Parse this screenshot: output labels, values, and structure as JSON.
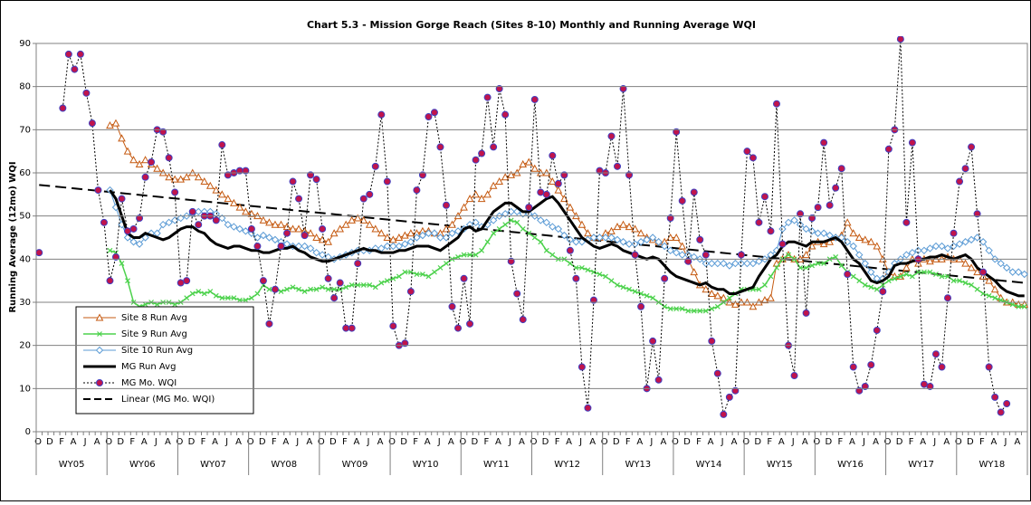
{
  "chart_data": {
    "type": "line",
    "title": "Chart 5.3 - Mission Gorge Reach (Sites 8-10) Monthly and Running Average WQI",
    "y_label": "Running Average (12mo) WQI",
    "ylim": [
      0,
      90
    ],
    "yticks": [
      0,
      10,
      20,
      30,
      40,
      50,
      60,
      70,
      80,
      90
    ],
    "grid": true,
    "legend": "lower left",
    "categories": [
      "O",
      null,
      "D",
      null,
      "F",
      null,
      "A",
      null,
      "J",
      null,
      "A",
      null,
      "O",
      null,
      "D",
      null,
      "F",
      null,
      "A",
      null,
      "J",
      null,
      "A",
      null,
      "O",
      null,
      "D",
      null,
      "F",
      null,
      "A",
      null,
      "J",
      null,
      "A",
      null,
      "O",
      null,
      "D",
      null,
      "F",
      null,
      "A",
      null,
      "J",
      null,
      "A",
      null,
      "O",
      null,
      "D",
      null,
      "F",
      null,
      "A",
      null,
      "J",
      null,
      "A",
      null,
      "O",
      null,
      "D",
      null,
      "F",
      null,
      "A",
      null,
      "J",
      null,
      "A",
      null,
      "O",
      null,
      "D",
      null,
      "F",
      null,
      "A",
      null,
      "J",
      null,
      "A",
      null,
      "O",
      null,
      "D",
      null,
      "F",
      null,
      "A",
      null,
      "J",
      null,
      "A",
      null,
      "O",
      null,
      "D",
      null,
      "F",
      null,
      "A",
      null,
      "J",
      null,
      "A",
      null,
      "O",
      null,
      "D",
      null,
      "F",
      null,
      "A",
      null,
      "J",
      null,
      "A",
      null,
      "O",
      null,
      "D",
      null,
      "F",
      null,
      "A",
      null,
      "J",
      null,
      "A",
      null,
      "O",
      null,
      "D",
      null,
      "F",
      null,
      "A",
      null,
      "J",
      null,
      "A",
      null,
      "O",
      null,
      "D",
      null,
      "F",
      null,
      "A",
      null,
      "J",
      null,
      "A",
      null,
      "O",
      null,
      "D",
      null,
      "F",
      null,
      "A",
      null,
      "J",
      null,
      "A",
      null
    ],
    "groups": [
      "WY05",
      "WY06",
      "WY07",
      "WY08",
      "WY09",
      "WY10",
      "WY11",
      "WY12",
      "WY13",
      "WY14",
      "WY15",
      "WY16",
      "WY17",
      "WY18"
    ],
    "series": [
      {
        "name": "Site 8 Run Avg",
        "color": "#c55a11",
        "marker": "triangle",
        "line_width": 1,
        "dash": "solid",
        "values": [
          null,
          null,
          null,
          null,
          null,
          null,
          null,
          null,
          null,
          null,
          null,
          null,
          71,
          71.5,
          68,
          65,
          63,
          62,
          63,
          62,
          61,
          60,
          59,
          58.5,
          58.5,
          59,
          60,
          59,
          58,
          57,
          56,
          55,
          54,
          53,
          52,
          51,
          50.5,
          50,
          49,
          48.5,
          48,
          48,
          47.5,
          47,
          47,
          46.5,
          46,
          45,
          44.5,
          44,
          46,
          47,
          48,
          49,
          49.5,
          49,
          48,
          47,
          46,
          45,
          44.5,
          45,
          45.5,
          46,
          46,
          46.5,
          46.5,
          46,
          46,
          47,
          48,
          50,
          52,
          54,
          55,
          54,
          55,
          57,
          58,
          59,
          59.5,
          60,
          62,
          62.5,
          61,
          60,
          60,
          58,
          56,
          54,
          52,
          50,
          48,
          46,
          45,
          45,
          46,
          46.5,
          47.5,
          48,
          47.5,
          47,
          46,
          45,
          44.5,
          44,
          44,
          45,
          45,
          43,
          40,
          37,
          34,
          33,
          32,
          31.5,
          31,
          30,
          29.5,
          30,
          30,
          29,
          30,
          30.5,
          31,
          39,
          40,
          41,
          40,
          40,
          41,
          43,
          44,
          43.5,
          44,
          45,
          45.5,
          48.5,
          46,
          45,
          44.5,
          44,
          43,
          40,
          37,
          36,
          36,
          38,
          40,
          39,
          40,
          39.5,
          40,
          40,
          40.5,
          40,
          40,
          39,
          38,
          37,
          36,
          35,
          33,
          31,
          30,
          30,
          29.5,
          29.5
        ]
      },
      {
        "name": "Site 9 Run Avg",
        "color": "#4dd24d",
        "marker": "x",
        "line_width": 1.5,
        "dash": "solid",
        "values": [
          null,
          null,
          null,
          null,
          null,
          null,
          null,
          null,
          null,
          null,
          null,
          null,
          42,
          41.5,
          39,
          35,
          30,
          29,
          29.5,
          30,
          29.5,
          30,
          30,
          29.5,
          30,
          31,
          32,
          32.5,
          32,
          32.5,
          31.5,
          31,
          31,
          31,
          30.5,
          30.5,
          31,
          32,
          34,
          33,
          33,
          32.5,
          33,
          33.5,
          33,
          32.5,
          33,
          33,
          33.5,
          33,
          33,
          33,
          33.5,
          34,
          34,
          34,
          34,
          33.5,
          34.5,
          35,
          35.5,
          36,
          37,
          37,
          36.5,
          36.5,
          36,
          37,
          38,
          39,
          40,
          40.5,
          41,
          41,
          41,
          42,
          44,
          46,
          47,
          48,
          49,
          48.5,
          47,
          46,
          45,
          44,
          42,
          41,
          40,
          40,
          39,
          38,
          38,
          37.5,
          37,
          36.5,
          36,
          35,
          34,
          33.5,
          33,
          32.5,
          32,
          31.5,
          31,
          30,
          29,
          28.5,
          28.5,
          28.5,
          28,
          28,
          28,
          28,
          28.5,
          29,
          30,
          31,
          32,
          33,
          33,
          33,
          33,
          34,
          36,
          38,
          40,
          41,
          40,
          38,
          38,
          38.5,
          39,
          39,
          40,
          40.5,
          38.5,
          37,
          36,
          35,
          34,
          33.5,
          33,
          34,
          35,
          35.5,
          36,
          36.5,
          36,
          37,
          37,
          37,
          36.5,
          36,
          36,
          35,
          35,
          34.5,
          34,
          33,
          32,
          31.5,
          31,
          30.5,
          30,
          29.5,
          29,
          29
        ]
      },
      {
        "name": "Site 10 Run Avg",
        "color": "#5b9bd5",
        "marker": "diamond",
        "line_width": 1,
        "dash": "solid",
        "values": [
          null,
          null,
          null,
          null,
          null,
          null,
          null,
          null,
          null,
          null,
          null,
          null,
          56,
          52,
          48,
          45,
          44,
          43.5,
          45,
          46,
          46,
          48,
          48.5,
          49,
          49.5,
          50,
          50.5,
          51,
          51,
          51,
          50.5,
          49.5,
          48,
          47.5,
          47,
          46.5,
          46,
          45,
          45.5,
          45,
          44.5,
          44,
          43.5,
          43,
          43,
          43,
          42.5,
          41.5,
          41,
          40.5,
          40,
          40.5,
          41,
          41.5,
          42,
          42,
          42,
          42.5,
          42.5,
          43,
          43,
          43,
          43.5,
          44,
          45,
          45.5,
          46,
          46,
          45,
          45,
          46,
          46.5,
          47,
          48,
          48.5,
          47.5,
          48,
          49,
          50,
          50.5,
          51,
          51,
          50.5,
          50.5,
          50,
          49,
          48.5,
          47.5,
          47,
          45.5,
          44.5,
          44,
          44,
          44.5,
          45,
          45,
          45,
          45,
          44.5,
          44,
          43.5,
          43.5,
          44,
          44.5,
          45,
          44,
          43,
          42,
          41.5,
          41,
          41,
          40.5,
          40,
          39,
          39,
          39,
          39,
          38.5,
          39,
          39,
          39,
          39,
          39.5,
          40,
          41,
          42,
          47,
          48.5,
          49,
          48,
          47,
          46.5,
          46,
          46,
          45.5,
          45,
          45,
          44,
          43,
          41,
          39,
          37,
          35.5,
          35.5,
          37,
          39,
          40,
          41,
          41.5,
          42,
          42,
          42.5,
          43,
          43,
          42.5,
          43,
          43.5,
          44,
          44.5,
          45,
          44,
          42,
          40,
          39,
          38,
          37,
          37,
          36.5
        ]
      },
      {
        "name": "MG Run Avg",
        "color": "#000000",
        "marker": "none",
        "line_width": 3,
        "dash": "solid",
        "values": [
          null,
          null,
          null,
          null,
          null,
          null,
          null,
          null,
          null,
          null,
          null,
          null,
          56,
          54,
          50,
          46,
          45,
          45,
          46,
          45.5,
          45,
          44.5,
          45,
          46,
          47,
          47.5,
          47.5,
          46.5,
          46,
          44.5,
          43.5,
          43,
          42.5,
          43,
          43,
          42.5,
          42,
          42,
          41.5,
          41.5,
          42,
          42.5,
          42.5,
          43,
          42,
          41.5,
          40.5,
          40,
          39.5,
          39.5,
          40,
          40.5,
          41,
          41.5,
          42,
          42.5,
          42,
          42,
          41.5,
          41.5,
          41.5,
          42,
          42,
          42.5,
          43,
          43,
          43,
          42.5,
          42,
          43,
          44,
          45,
          47,
          47.5,
          46.5,
          47,
          49,
          51,
          52,
          53,
          53,
          52,
          51,
          51,
          52,
          53,
          54,
          54.5,
          53,
          51,
          49,
          47,
          45,
          44,
          43,
          42.5,
          43,
          43.5,
          43,
          42,
          41.5,
          41,
          40.5,
          40,
          40.5,
          40,
          38.5,
          37,
          36,
          35.5,
          35,
          34.5,
          34,
          34.5,
          33.5,
          33,
          33,
          32,
          32,
          32.5,
          33,
          33.5,
          36,
          38,
          40,
          41,
          43,
          44,
          44,
          43.5,
          43,
          44,
          44,
          44,
          44.5,
          45,
          44,
          42,
          40,
          39,
          37,
          35,
          34.5,
          35,
          36,
          38.5,
          39,
          39,
          39.5,
          40,
          40,
          40.5,
          40.5,
          41,
          40.5,
          40,
          40.5,
          41,
          40,
          38,
          37,
          36,
          35,
          33.5,
          32.5,
          32,
          31.5,
          31.5
        ]
      },
      {
        "name": "MG Mo. WQI",
        "color": "#c0144c",
        "marker": "circle",
        "line_width": 1,
        "dash": "dotted",
        "values": [
          41.5,
          null,
          null,
          null,
          75,
          87.5,
          84,
          87.5,
          78.5,
          71.5,
          56,
          48.5,
          35,
          40.5,
          54,
          46.5,
          47,
          49.5,
          59,
          62.5,
          70,
          69.5,
          63.5,
          55.5,
          34.5,
          35,
          51,
          48,
          50,
          50,
          49,
          66.5,
          59.5,
          60,
          60.5,
          60.5,
          47,
          43,
          35,
          25,
          33,
          43,
          46,
          58,
          54,
          45.5,
          59.5,
          58.5,
          47,
          35.5,
          31,
          34.5,
          24,
          24,
          39,
          54,
          55,
          61.5,
          73.5,
          58,
          24.5,
          20,
          20.5,
          32.5,
          56,
          59.5,
          73,
          74,
          66,
          52.5,
          29,
          24,
          35.5,
          25,
          63,
          64.5,
          77.5,
          66,
          79.5,
          73.5,
          39.5,
          32,
          26,
          52,
          77,
          55.5,
          55,
          64,
          57.5,
          59.5,
          42,
          35.5,
          15,
          5.5,
          30.5,
          60.5,
          60,
          68.5,
          61.5,
          79.5,
          59.5,
          41,
          29,
          10,
          21,
          12,
          35.5,
          49.5,
          69.5,
          53.5,
          39.5,
          55.5,
          44.5,
          41,
          21,
          13.5,
          4,
          8,
          9.5,
          41,
          65,
          63.5,
          48.5,
          54.5,
          46.5,
          76,
          43.5,
          20,
          13,
          50.5,
          27.5,
          49.5,
          52,
          67,
          52.5,
          56.5,
          61,
          36.5,
          15,
          9.5,
          10.5,
          15.5,
          23.5,
          32.5,
          65.5,
          70,
          91,
          48.5,
          67,
          40,
          11,
          10.5,
          18,
          15,
          31,
          46,
          58,
          61,
          66,
          50.5,
          37,
          15,
          8,
          4.5,
          6.5,
          null,
          null,
          null
        ]
      }
    ],
    "trendline": {
      "name": "Linear (MG Mo. WQI)",
      "color": "#000000",
      "start": 57.2,
      "end": 34.5
    }
  }
}
